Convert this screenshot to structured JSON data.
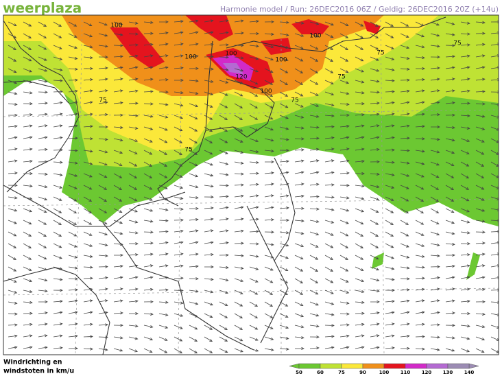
{
  "header": {
    "logo": "weerplaza",
    "info": "Harmonie model / Run: 26DEC2016 06Z / Geldig: 26DEC2016 20Z (+14u)"
  },
  "map": {
    "contour_labels": [
      100,
      100,
      100,
      100,
      100,
      100,
      120,
      75,
      75,
      75,
      75,
      75,
      75
    ]
  },
  "legend": {
    "title_lines": [
      "Windrichting en",
      "windstoten in km/u"
    ],
    "scale": {
      "ticks": [
        50,
        60,
        75,
        90,
        100,
        110,
        120,
        130,
        140
      ],
      "colors": [
        "#6cc832",
        "#bfe234",
        "#fbe83a",
        "#f0901a",
        "#e4141e",
        "#d22ac8",
        "#b46ad2",
        "#9c8cb4"
      ]
    }
  }
}
